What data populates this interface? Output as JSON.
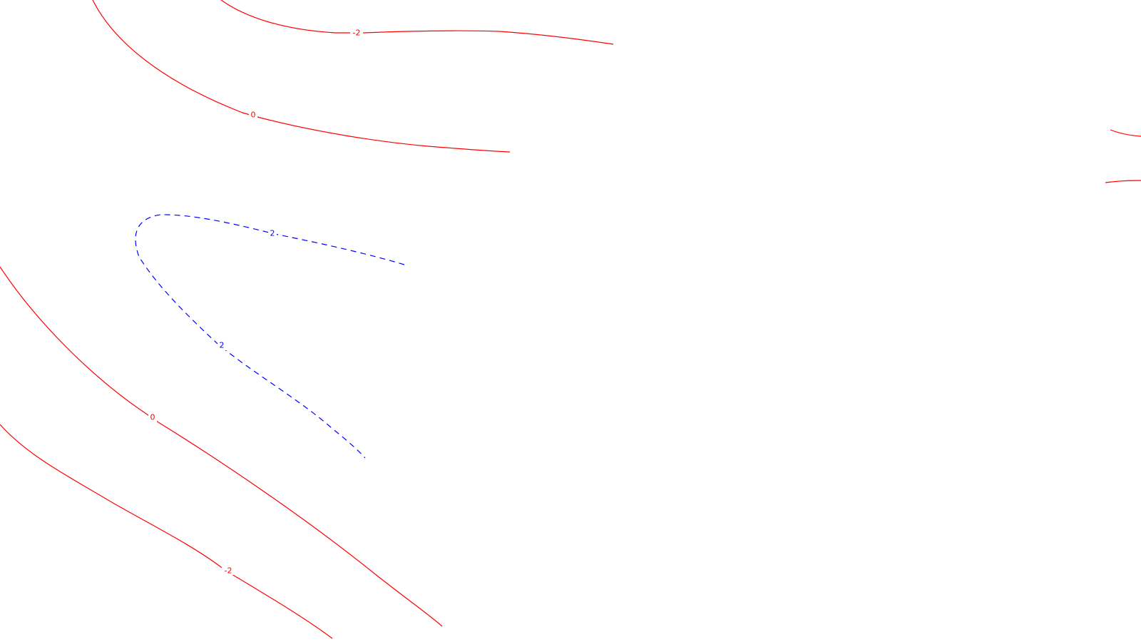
{
  "colors": {
    "background": "#ffffff",
    "negative_or_zero_contour": "#ff0000",
    "positive_contour": "#0000ff"
  },
  "contours": [
    {
      "id": "contour-neg2-top",
      "level": "-2",
      "style": "solid",
      "color": "#ff0000"
    },
    {
      "id": "contour-zero-top",
      "level": "0",
      "style": "solid",
      "color": "#ff0000"
    },
    {
      "id": "contour-pos2",
      "level": "2",
      "style": "dashed",
      "color": "#0000ff"
    },
    {
      "id": "contour-zero-bottom",
      "level": "0",
      "style": "solid",
      "color": "#ff0000"
    },
    {
      "id": "contour-neg2-bottom",
      "level": "-2",
      "style": "solid",
      "color": "#ff0000"
    },
    {
      "id": "contour-right-edge-upper",
      "level": "",
      "style": "solid",
      "color": "#ff0000"
    },
    {
      "id": "contour-right-edge-lower",
      "level": "",
      "style": "solid",
      "color": "#ff0000"
    }
  ],
  "labels": {
    "neg2_top": "-2",
    "zero_top": "0",
    "pos2_upper": "2",
    "pos2_lower": "2",
    "zero_bottom": "0",
    "neg2_bottom": "-2"
  }
}
